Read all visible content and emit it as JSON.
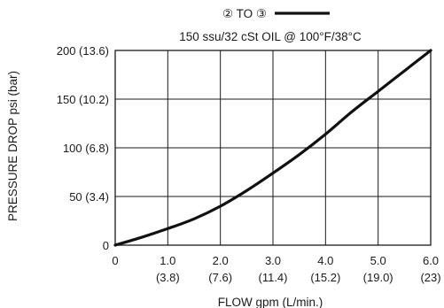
{
  "chart_data": {
    "type": "line",
    "legend": {
      "label": "② TO ③",
      "placement": "top-center"
    },
    "subtitle": "150 ssu/32 cSt OIL @ 100°F/38°C",
    "xlabel": "FLOW gpm (L/min.)",
    "ylabel": "PRESSURE DROP psi (bar)",
    "xlim": [
      0,
      6
    ],
    "ylim": [
      0,
      200
    ],
    "grid": true,
    "x_ticks": [
      {
        "value": 0,
        "line1": "0",
        "line2": ""
      },
      {
        "value": 1,
        "line1": "1.0",
        "line2": "(3.8)"
      },
      {
        "value": 2,
        "line1": "2.0",
        "line2": "(7.6)"
      },
      {
        "value": 3,
        "line1": "3.0",
        "line2": "(11.4)"
      },
      {
        "value": 4,
        "line1": "4.0",
        "line2": "(15.2)"
      },
      {
        "value": 5,
        "line1": "5.0",
        "line2": "(19.0)"
      },
      {
        "value": 6,
        "line1": "6.0",
        "line2": "(23)"
      }
    ],
    "y_ticks": [
      {
        "value": 0,
        "label": "0"
      },
      {
        "value": 50,
        "label": "50 (3.4)"
      },
      {
        "value": 100,
        "label": "100 (6.8)"
      },
      {
        "value": 150,
        "label": "150 (10.2)"
      },
      {
        "value": 200,
        "label": "200 (13.6)"
      }
    ],
    "series": [
      {
        "color": "#111111",
        "x": [
          0,
          0.5,
          1.0,
          1.5,
          2.0,
          2.5,
          3.0,
          3.5,
          4.0,
          4.5,
          5.0,
          5.5,
          6.0
        ],
        "y": [
          0,
          8,
          17,
          27,
          40,
          56,
          74,
          93,
          114,
          137,
          158,
          179,
          200
        ]
      }
    ]
  }
}
